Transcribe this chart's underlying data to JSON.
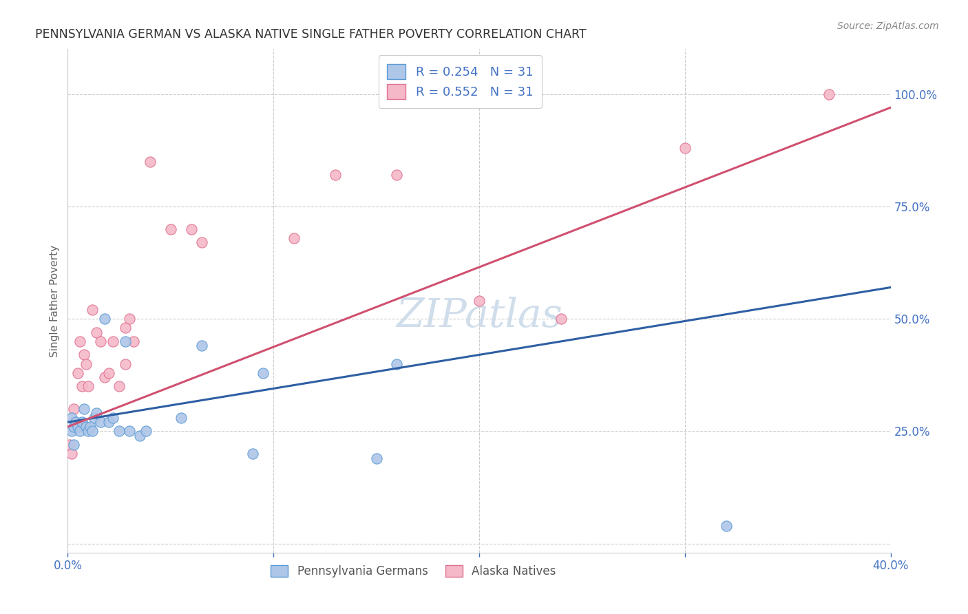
{
  "title": "PENNSYLVANIA GERMAN VS ALASKA NATIVE SINGLE FATHER POVERTY CORRELATION CHART",
  "source": "Source: ZipAtlas.com",
  "ylabel": "Single Father Poverty",
  "right_yticks": [
    0.0,
    0.25,
    0.5,
    0.75,
    1.0
  ],
  "right_yticklabels": [
    "",
    "25.0%",
    "50.0%",
    "75.0%",
    "100.0%"
  ],
  "xlim": [
    0.0,
    0.4
  ],
  "ylim": [
    -0.02,
    1.1
  ],
  "watermark": "ZIPatlas",
  "blue_color": "#5b9bd5",
  "pink_color": "#e07090",
  "blue_scatter_color": "#aec6e8",
  "pink_scatter_color": "#f4b8c8",
  "blue_line_color": "#2e5fa3",
  "pink_line_color": "#d05070",
  "blue_scatter_x": [
    0.002,
    0.002,
    0.003,
    0.003,
    0.004,
    0.005,
    0.006,
    0.007,
    0.008,
    0.009,
    0.01,
    0.011,
    0.012,
    0.013,
    0.014,
    0.016,
    0.018,
    0.02,
    0.022,
    0.025,
    0.028,
    0.03,
    0.035,
    0.038,
    0.055,
    0.065,
    0.09,
    0.095,
    0.15,
    0.16,
    0.32
  ],
  "blue_scatter_y": [
    0.28,
    0.25,
    0.26,
    0.22,
    0.27,
    0.26,
    0.25,
    0.27,
    0.3,
    0.26,
    0.25,
    0.26,
    0.25,
    0.28,
    0.29,
    0.27,
    0.5,
    0.27,
    0.28,
    0.25,
    0.45,
    0.25,
    0.24,
    0.25,
    0.28,
    0.44,
    0.2,
    0.38,
    0.19,
    0.4,
    0.04
  ],
  "pink_scatter_x": [
    0.001,
    0.002,
    0.003,
    0.005,
    0.006,
    0.007,
    0.008,
    0.009,
    0.01,
    0.012,
    0.014,
    0.016,
    0.018,
    0.02,
    0.022,
    0.025,
    0.028,
    0.028,
    0.03,
    0.032,
    0.04,
    0.05,
    0.06,
    0.065,
    0.11,
    0.13,
    0.16,
    0.2,
    0.24,
    0.3,
    0.37
  ],
  "pink_scatter_y": [
    0.22,
    0.2,
    0.3,
    0.38,
    0.45,
    0.35,
    0.42,
    0.4,
    0.35,
    0.52,
    0.47,
    0.45,
    0.37,
    0.38,
    0.45,
    0.35,
    0.48,
    0.4,
    0.5,
    0.45,
    0.85,
    0.7,
    0.7,
    0.67,
    0.68,
    0.82,
    0.82,
    0.54,
    0.5,
    0.88,
    1.0
  ],
  "blue_trend_x": [
    0.0,
    0.4
  ],
  "blue_trend_y": [
    0.27,
    0.57
  ],
  "pink_trend_x": [
    0.0,
    0.4
  ],
  "pink_trend_y": [
    0.26,
    0.97
  ],
  "background_color": "#ffffff",
  "grid_color": "#cccccc",
  "xtick_positions": [
    0.0,
    0.1,
    0.2,
    0.3,
    0.4
  ],
  "xtick_labels_bottom": [
    "0.0%",
    "",
    "",
    "",
    "40.0%"
  ],
  "axis_label_color": "#4472c4"
}
